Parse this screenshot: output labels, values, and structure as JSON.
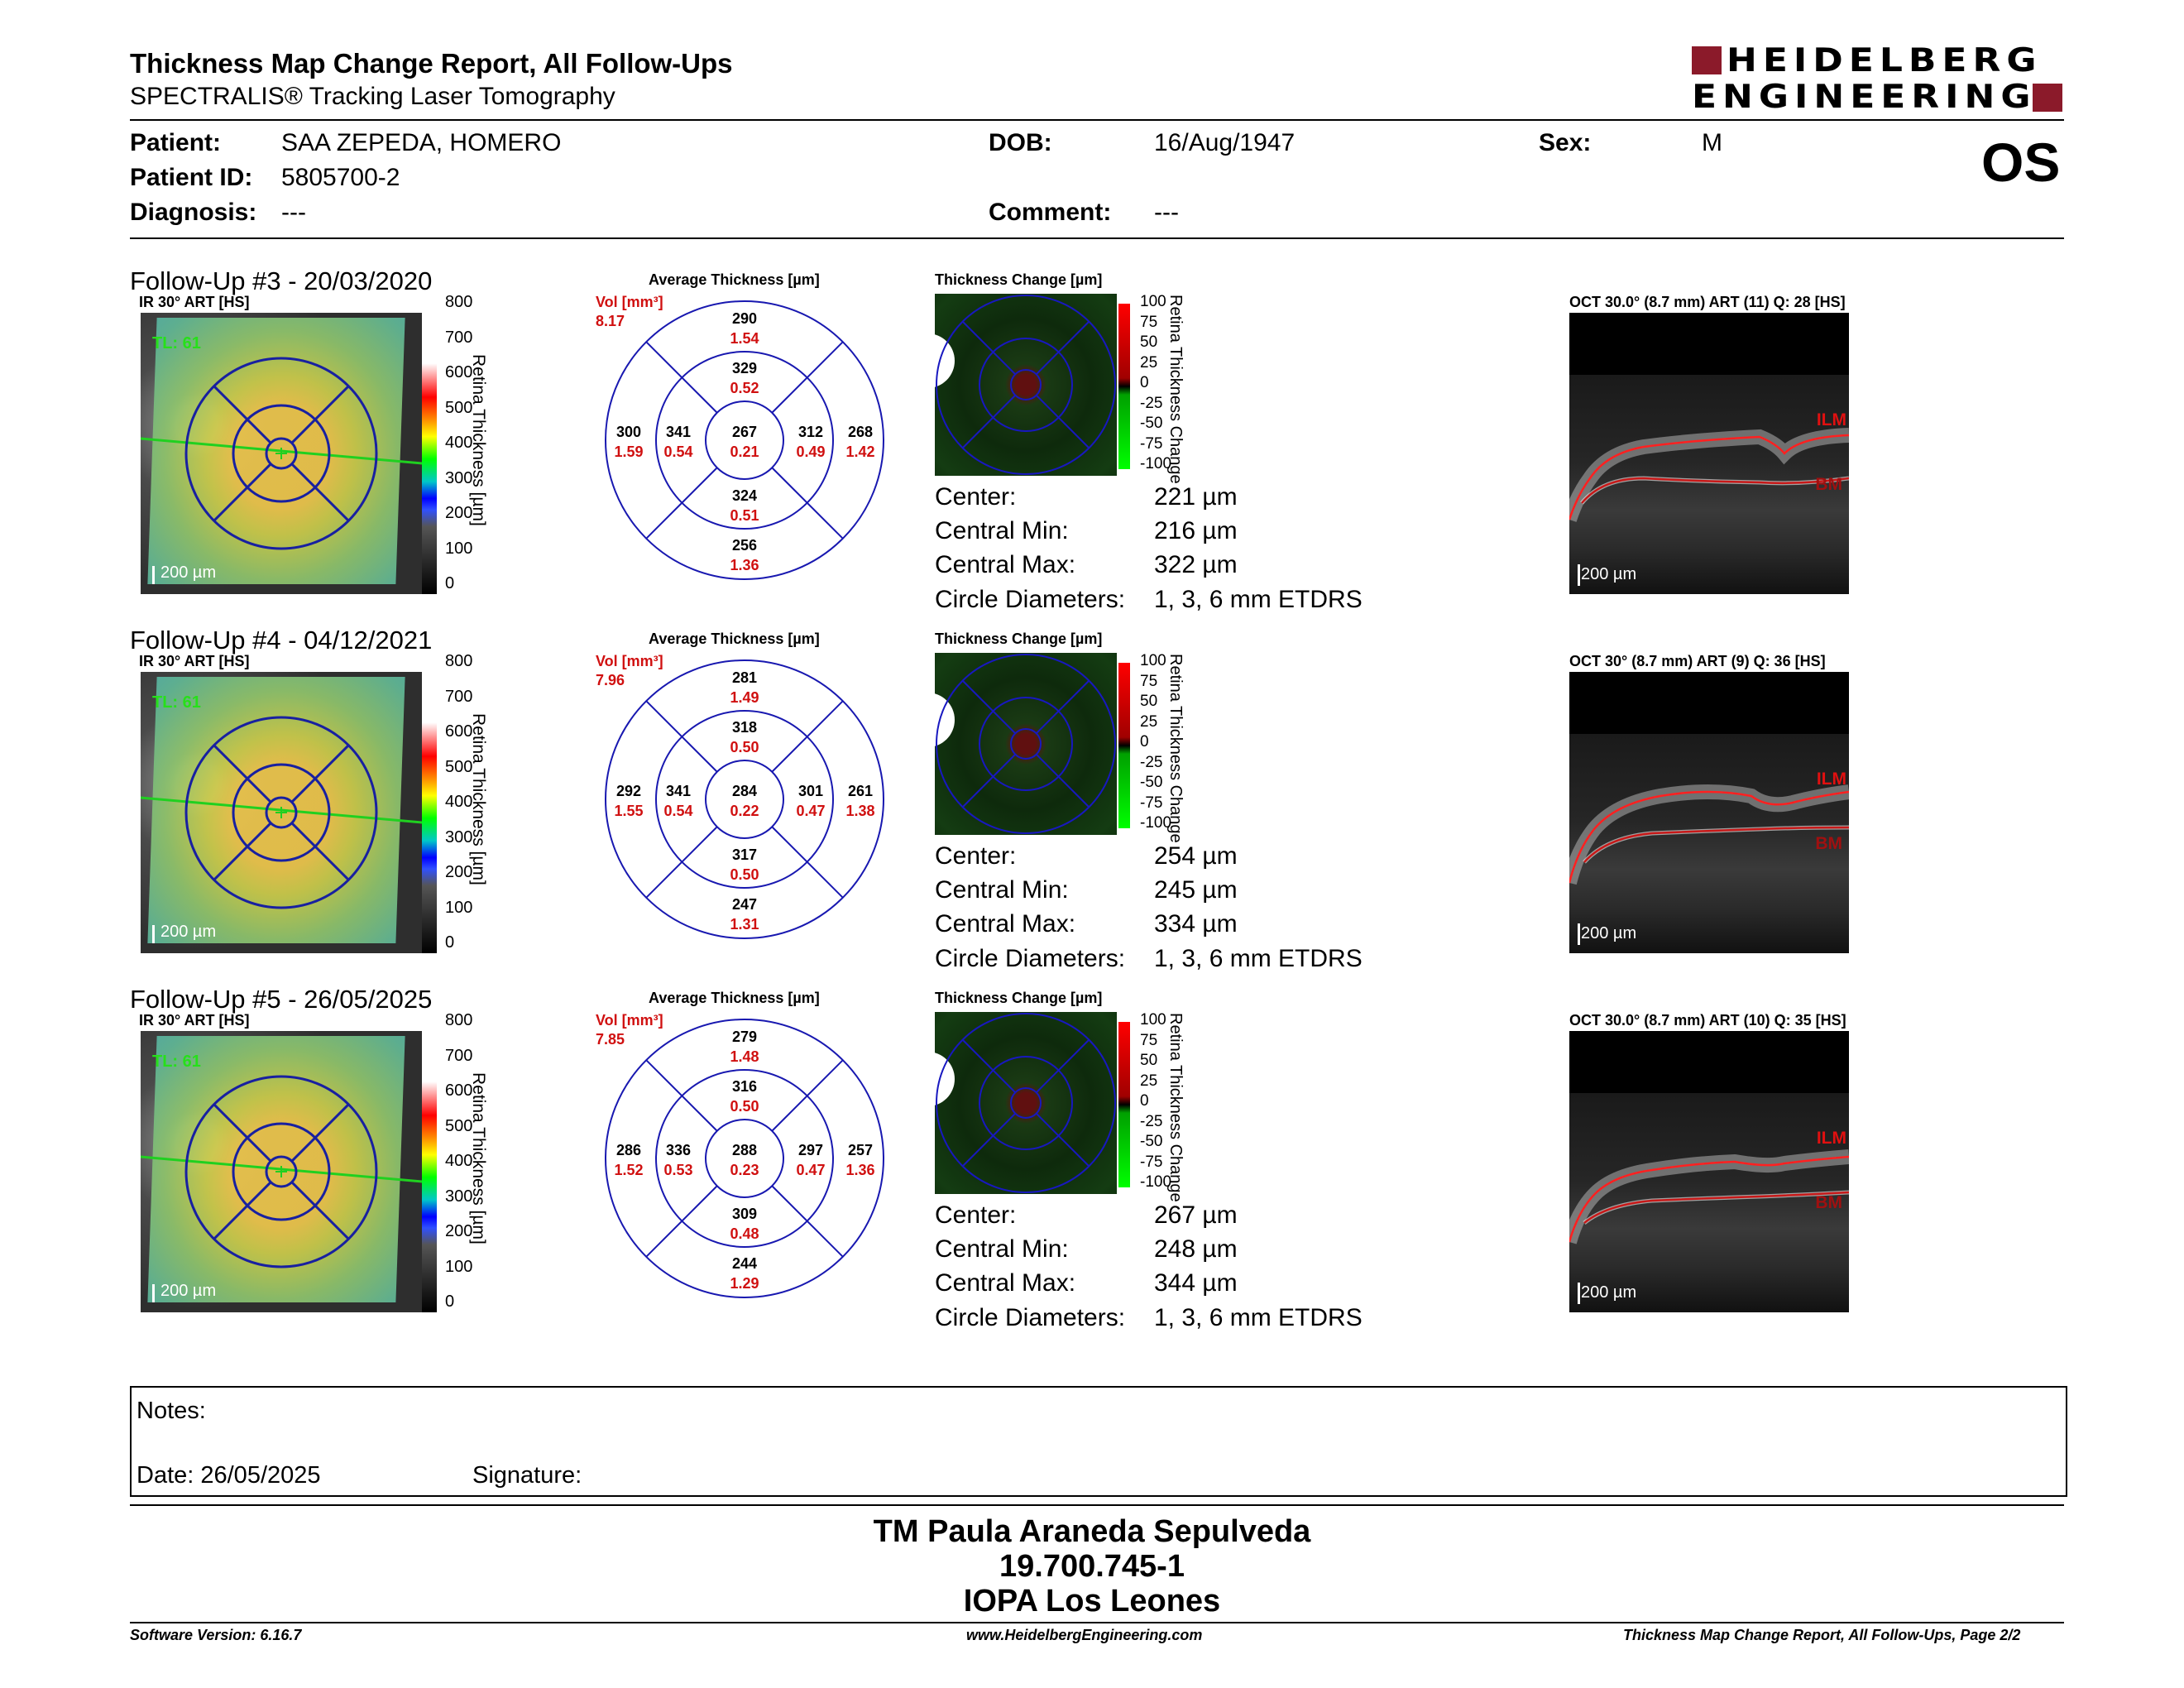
{
  "header": {
    "title": "Thickness Map Change Report, All Follow-Ups",
    "subtitle": "SPECTRALIS® Tracking Laser Tomography",
    "logo_line1": "HEIDELBERG",
    "logo_line2": "ENGINEERING",
    "eye": "OS"
  },
  "patient": {
    "patient_label": "Patient:",
    "patient_value": "SAA ZEPEDA, HOMERO",
    "id_label": "Patient ID:",
    "id_value": "5805700-2",
    "diagnosis_label": "Diagnosis:",
    "diagnosis_value": "---",
    "dob_label": "DOB:",
    "dob_value": "16/Aug/1947",
    "comment_label": "Comment:",
    "comment_value": "---",
    "sex_label": "Sex:",
    "sex_value": "M"
  },
  "common": {
    "avg_title": "Average Thickness [µm]",
    "vol_label": "Vol [mm³]",
    "tc_title": "Thickness Change [µm]",
    "cbar_title": "Retina Thickness [µm]",
    "tc_bar_title": "Retina Thickness Change",
    "scale": "200 µm",
    "tl": "TL: 61",
    "ilm": "ILM",
    "bm": "BM",
    "cbar_ticks": [
      "800",
      "700",
      "600",
      "500",
      "400",
      "300",
      "200",
      "100",
      "0"
    ],
    "tc_ticks": [
      "100",
      "75",
      "50",
      "25",
      "0",
      "-25",
      "-50",
      "-75",
      "-100"
    ],
    "stat_labels": [
      "Center:",
      "Central Min:",
      "Central Max:",
      "Circle Diameters:"
    ]
  },
  "followups": [
    {
      "title": "Follow-Up #3 - 20/03/2020",
      "ir_label": "IR 30° ART [HS]",
      "vol": "8.17",
      "etdrs": {
        "center": [
          "267",
          "0.21"
        ],
        "inner_sup": [
          "329",
          "0.52"
        ],
        "inner_inf": [
          "324",
          "0.51"
        ],
        "inner_tem": [
          "341",
          "0.54"
        ],
        "inner_nas": [
          "312",
          "0.49"
        ],
        "outer_sup": [
          "290",
          "1.54"
        ],
        "outer_inf": [
          "256",
          "1.36"
        ],
        "outer_tem": [
          "300",
          "1.59"
        ],
        "outer_nas": [
          "268",
          "1.42"
        ]
      },
      "stats": [
        "221 µm",
        "216 µm",
        "322 µm",
        "1, 3, 6 mm ETDRS"
      ],
      "oct_label": "OCT 30.0° (8.7 mm) ART (11) Q: 28 [HS]"
    },
    {
      "title": "Follow-Up #4 - 04/12/2021",
      "ir_label": "IR 30° ART [HS]",
      "vol": "7.96",
      "etdrs": {
        "center": [
          "284",
          "0.22"
        ],
        "inner_sup": [
          "318",
          "0.50"
        ],
        "inner_inf": [
          "317",
          "0.50"
        ],
        "inner_tem": [
          "341",
          "0.54"
        ],
        "inner_nas": [
          "301",
          "0.47"
        ],
        "outer_sup": [
          "281",
          "1.49"
        ],
        "outer_inf": [
          "247",
          "1.31"
        ],
        "outer_tem": [
          "292",
          "1.55"
        ],
        "outer_nas": [
          "261",
          "1.38"
        ]
      },
      "stats": [
        "254 µm",
        "245 µm",
        "334 µm",
        "1, 3, 6 mm ETDRS"
      ],
      "oct_label": "OCT 30° (8.7 mm) ART (9) Q: 36 [HS]"
    },
    {
      "title": "Follow-Up #5 - 26/05/2025",
      "ir_label": "IR 30° ART [HS]",
      "vol": "7.85",
      "etdrs": {
        "center": [
          "288",
          "0.23"
        ],
        "inner_sup": [
          "316",
          "0.50"
        ],
        "inner_inf": [
          "309",
          "0.48"
        ],
        "inner_tem": [
          "336",
          "0.53"
        ],
        "inner_nas": [
          "297",
          "0.47"
        ],
        "outer_sup": [
          "279",
          "1.48"
        ],
        "outer_inf": [
          "244",
          "1.29"
        ],
        "outer_tem": [
          "286",
          "1.52"
        ],
        "outer_nas": [
          "257",
          "1.36"
        ]
      },
      "stats": [
        "267 µm",
        "248 µm",
        "344 µm",
        "1, 3, 6 mm ETDRS"
      ],
      "oct_label": "OCT 30.0° (8.7 mm) ART (10) Q: 35 [HS]"
    }
  ],
  "notes": {
    "notes_label": "Notes:",
    "date_label": "Date: 26/05/2025",
    "signature_label": "Signature:"
  },
  "signer": {
    "line1": "TM Paula Araneda Sepulveda",
    "line2": "19.700.745-1",
    "line3": "IOPA Los Leones"
  },
  "footer": {
    "software": "Software Version: 6.16.7",
    "website": "www.HeidelbergEngineering.com",
    "page": "Thickness Map Change Report, All Follow-Ups, Page 2/2"
  }
}
